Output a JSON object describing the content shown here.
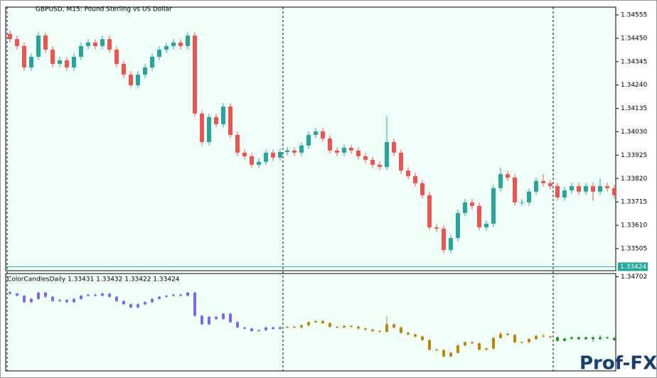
{
  "chart_data": [
    {
      "type": "candlestick",
      "title": "GBPUSD, M15:  Pound Sterling vs US Dollar",
      "up_color": "#26a69a",
      "down_color": "#ef5350",
      "background": "#f0fff8",
      "ylim": [
        1.33406,
        1.3459
      ],
      "yticks": [
        1.34555,
        {
          "value": 1.3445,
          "label": "1.34450"
        },
        1.34345,
        {
          "value": 1.3424,
          "label": "1.34240"
        },
        1.34135,
        {
          "value": 1.3403,
          "label": "1.34030"
        },
        1.33925,
        {
          "value": 1.3382,
          "label": "1.33820"
        },
        1.33715,
        {
          "value": 1.3361,
          "label": "1.33610"
        },
        1.33505
      ],
      "current_price": 1.33424,
      "current_price_color": "#26a69a",
      "period_separators": [
        0,
        39,
        77
      ],
      "open": [
        1.3447,
        1.34446,
        1.34415,
        1.34319,
        1.34367,
        1.34462,
        1.34399,
        1.34335,
        1.34351,
        1.34319,
        1.34367,
        1.34415,
        1.34431,
        1.34415,
        1.34446,
        1.34399,
        1.34335,
        1.34287,
        1.34239,
        1.34287,
        1.34319,
        1.34367,
        1.34399,
        1.34415,
        1.34431,
        1.34415,
        1.34462,
        1.34112,
        1.33984,
        1.34096,
        1.34064,
        1.34143,
        1.34016,
        1.33936,
        1.3392,
        1.33882,
        1.33895,
        1.33936,
        1.33914,
        1.33939,
        1.33946,
        1.33936,
        1.33968,
        1.34016,
        1.34032,
        1.34,
        1.33946,
        1.33936,
        1.33958,
        1.33946,
        1.3392,
        1.33904,
        1.33882,
        1.33872,
        1.33984,
        1.33936,
        1.33856,
        1.33831,
        1.33799,
        1.33745,
        1.33601,
        1.33595,
        1.33499,
        1.33553,
        1.33665,
        1.33713,
        1.33697,
        1.33601,
        1.33617,
        1.33777,
        1.3384,
        1.33824,
        1.33713,
        1.33713,
        1.33761,
        1.33809,
        1.33799,
        1.33786,
        1.33735,
        1.33767,
        1.33786,
        1.33761,
        1.33786,
        1.33761,
        1.33786,
        1.33777
      ],
      "high": [
        1.34485,
        1.34461,
        1.3443,
        1.34382,
        1.34477,
        1.34477,
        1.34414,
        1.34366,
        1.34366,
        1.34382,
        1.3443,
        1.34446,
        1.34446,
        1.34461,
        1.34461,
        1.34414,
        1.3435,
        1.34302,
        1.34302,
        1.34334,
        1.34382,
        1.34414,
        1.3443,
        1.34446,
        1.34446,
        1.34477,
        1.34477,
        1.34127,
        1.34111,
        1.34111,
        1.34158,
        1.34158,
        1.34031,
        1.33951,
        1.33935,
        1.3391,
        1.33951,
        1.33951,
        1.33954,
        1.33961,
        1.33961,
        1.33983,
        1.34031,
        1.34047,
        1.34047,
        1.34015,
        1.33961,
        1.33973,
        1.33973,
        1.33961,
        1.33935,
        1.33919,
        1.33897,
        1.34099,
        1.33999,
        1.33951,
        1.33871,
        1.33846,
        1.33814,
        1.3376,
        1.33616,
        1.3361,
        1.33568,
        1.3368,
        1.33728,
        1.33728,
        1.33712,
        1.33632,
        1.33792,
        1.3387,
        1.33855,
        1.33839,
        1.33728,
        1.33776,
        1.33824,
        1.3384,
        1.33814,
        1.33801,
        1.33782,
        1.33801,
        1.33801,
        1.33801,
        1.33801,
        1.3382,
        1.33801,
        1.33792
      ],
      "low": [
        1.34431,
        1.344,
        1.34304,
        1.34304,
        1.34352,
        1.34384,
        1.3432,
        1.3432,
        1.34304,
        1.34304,
        1.34352,
        1.344,
        1.344,
        1.344,
        1.34384,
        1.3432,
        1.34272,
        1.34224,
        1.34224,
        1.34272,
        1.34304,
        1.34352,
        1.34384,
        1.344,
        1.344,
        1.344,
        1.34097,
        1.33969,
        1.33969,
        1.34049,
        1.34049,
        1.34001,
        1.33921,
        1.33905,
        1.33867,
        1.33867,
        1.3388,
        1.33899,
        1.33899,
        1.33924,
        1.33921,
        1.33921,
        1.33953,
        1.34001,
        1.33985,
        1.33931,
        1.33921,
        1.33921,
        1.33931,
        1.33905,
        1.33889,
        1.33867,
        1.33857,
        1.33857,
        1.33921,
        1.33841,
        1.33816,
        1.33784,
        1.3373,
        1.33586,
        1.3358,
        1.33484,
        1.33484,
        1.33538,
        1.3365,
        1.33682,
        1.33586,
        1.33586,
        1.33602,
        1.33762,
        1.33809,
        1.33698,
        1.33698,
        1.33698,
        1.33746,
        1.33784,
        1.33771,
        1.3372,
        1.3372,
        1.33752,
        1.33746,
        1.33746,
        1.3372,
        1.33746,
        1.33762,
        1.3373
      ],
      "close": [
        1.34446,
        1.34415,
        1.34319,
        1.34367,
        1.34462,
        1.34399,
        1.34335,
        1.34351,
        1.34319,
        1.34367,
        1.34415,
        1.34431,
        1.34415,
        1.34446,
        1.34399,
        1.34335,
        1.34287,
        1.34239,
        1.34287,
        1.34319,
        1.34367,
        1.34399,
        1.34415,
        1.34431,
        1.34415,
        1.34462,
        1.34112,
        1.33984,
        1.34096,
        1.34064,
        1.34143,
        1.34016,
        1.33936,
        1.3392,
        1.33882,
        1.33895,
        1.33936,
        1.33914,
        1.33939,
        1.33946,
        1.33936,
        1.33968,
        1.34016,
        1.34032,
        1.34,
        1.33946,
        1.33936,
        1.33958,
        1.33946,
        1.3392,
        1.33904,
        1.33882,
        1.33872,
        1.33984,
        1.33936,
        1.33856,
        1.33831,
        1.33799,
        1.33745,
        1.33601,
        1.33595,
        1.33499,
        1.33553,
        1.33665,
        1.33713,
        1.33697,
        1.33601,
        1.33617,
        1.33777,
        1.3384,
        1.33824,
        1.33713,
        1.33713,
        1.33761,
        1.33809,
        1.33799,
        1.33786,
        1.33735,
        1.33767,
        1.33786,
        1.33761,
        1.33786,
        1.33761,
        1.33786,
        1.33777,
        1.33745
      ]
    },
    {
      "type": "indicator",
      "title": "ColorCandlesDaily 1.33431 1.33432 1.33422 1.33424",
      "ylim": [
        1.3328,
        1.3475
      ],
      "yticks": [
        1.34702
      ],
      "period_colors": [
        "#7b68ee",
        "#b8860b",
        "#228b22"
      ]
    }
  ],
  "watermark": "Prof-FX"
}
